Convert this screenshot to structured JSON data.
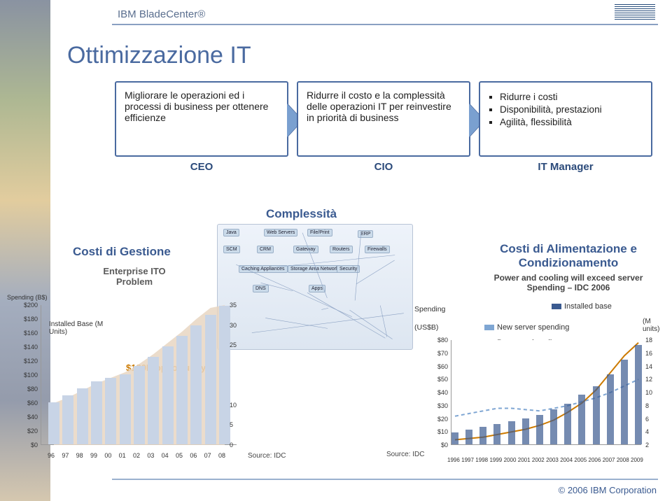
{
  "header": {
    "brand": "IBM BladeCenter®",
    "corp": "© 2006 IBM Corporation"
  },
  "title": "Ottimizzazione IT",
  "roles": [
    {
      "body": "Migliorare le operazioni ed i processi di business per ottenere efficienze",
      "label": "CEO",
      "items": []
    },
    {
      "body": "Ridurre il costo e la complessità delle operazioni IT per reinvestire in priorità di business",
      "label": "CIO",
      "items": []
    },
    {
      "body": "",
      "label": "IT Manager",
      "items": [
        "Ridurre i costi",
        "Disponibilità, prestazioni",
        "Agilità, flessibilità"
      ]
    }
  ],
  "diagram_label": "Complessità",
  "diagram_chips": [
    "Java",
    "Web Servers",
    "File/Print",
    "ERP",
    "SCM",
    "CRM",
    "Gateway",
    "Routers",
    "Firewalls",
    "Caching Appliances",
    "Storage Area Network",
    "Security",
    "DNS",
    "Apps"
  ],
  "left_chart": {
    "title": "Costi di Gestione",
    "subtitle": "Enterprise ITO Problem",
    "ylabel": "Spending (B$)",
    "installed_label": "Installed Base (M Units)",
    "opportunity": "$120B opportunity",
    "source": "Source: IDC",
    "y_ticks": [
      "$200",
      "$180",
      "$160",
      "$140",
      "$120",
      "$100",
      "$80",
      "$60",
      "$40",
      "$20",
      "$0"
    ],
    "y_max": 200,
    "r_ticks": [
      "35",
      "30",
      "25",
      "",
      "",
      "10",
      "5",
      "0"
    ],
    "x_labels": [
      "96",
      "97",
      "98",
      "99",
      "00",
      "01",
      "02",
      "03",
      "04",
      "05",
      "06",
      "07",
      "08"
    ],
    "bars": [
      60,
      70,
      80,
      90,
      95,
      100,
      112,
      125,
      140,
      155,
      170,
      185,
      198
    ],
    "bg_area": [
      60,
      68,
      78,
      88,
      96,
      104,
      116,
      130,
      146,
      162,
      180,
      196,
      210
    ],
    "bar_color": "#c8d4e6",
    "bg_color": "#e7d6c2"
  },
  "right_chart": {
    "title": "Costi di Alimentazione e Condizionamento",
    "subtitle": "Power and cooling will exceed server Spending – IDC 2006",
    "spending_label": "Spending",
    "unit_label": "(US$B)",
    "right_unit": "(M units)",
    "legend": {
      "installed": "Installed base",
      "new_spend": "New server spending",
      "power": "Power and cooling"
    },
    "legend_colors": {
      "installed": "#3a5a90",
      "new_spend": "#7fa6d3",
      "power": "#cc7a00"
    },
    "source": "Source: IDC",
    "y_ticks": [
      "$80",
      "$70",
      "$60",
      "$50",
      "$40",
      "$30",
      "$20",
      "$10",
      "$0"
    ],
    "y_max": 80,
    "r_ticks": [
      "18",
      "16",
      "14",
      "12",
      "10",
      "8",
      "6",
      "4",
      "2"
    ],
    "x_labels": [
      "1996",
      "1997",
      "1998",
      "1999",
      "2000",
      "2001",
      "2002",
      "2003",
      "2004",
      "2005",
      "2006",
      "2007",
      "2008",
      "2009"
    ],
    "new_server": [
      22,
      24,
      26,
      28,
      28,
      27,
      26,
      28,
      30,
      33,
      36,
      40,
      45,
      50
    ],
    "power_cool": [
      4,
      5,
      6,
      8,
      10,
      12,
      15,
      19,
      25,
      32,
      42,
      55,
      68,
      78
    ],
    "installed_bars": [
      2,
      2.5,
      3,
      3.5,
      4,
      4.5,
      5,
      6,
      7,
      8.5,
      10,
      12,
      14.5,
      17
    ]
  }
}
